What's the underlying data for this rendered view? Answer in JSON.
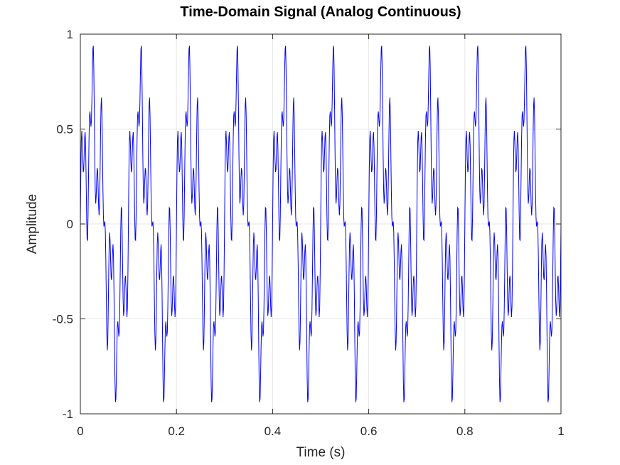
{
  "chart_data": {
    "type": "line",
    "title": "Time-Domain Signal (Analog Continuous)",
    "xlabel": "Time (s)",
    "ylabel": "Amplitude",
    "xlim": [
      0,
      1
    ],
    "ylim": [
      -1,
      1
    ],
    "xticks": [
      0,
      0.2,
      0.4,
      0.6,
      0.8,
      1
    ],
    "xtick_labels": [
      "0",
      "0.2",
      "0.4",
      "0.6",
      "0.8",
      "1"
    ],
    "yticks": [
      -1,
      -0.5,
      0,
      0.5,
      1
    ],
    "ytick_labels": [
      "-1",
      "-0.5",
      "0",
      "0.5",
      "1"
    ],
    "grid": true,
    "series": [
      {
        "color": "#0000ff",
        "sample_rate_hz": 1000,
        "components": [
          {
            "frequency_hz": 10,
            "amplitude": 0.5
          },
          {
            "frequency_hz": 50,
            "amplitude": 0.3
          },
          {
            "frequency_hz": 120,
            "amplitude": 0.2
          }
        ]
      }
    ]
  }
}
